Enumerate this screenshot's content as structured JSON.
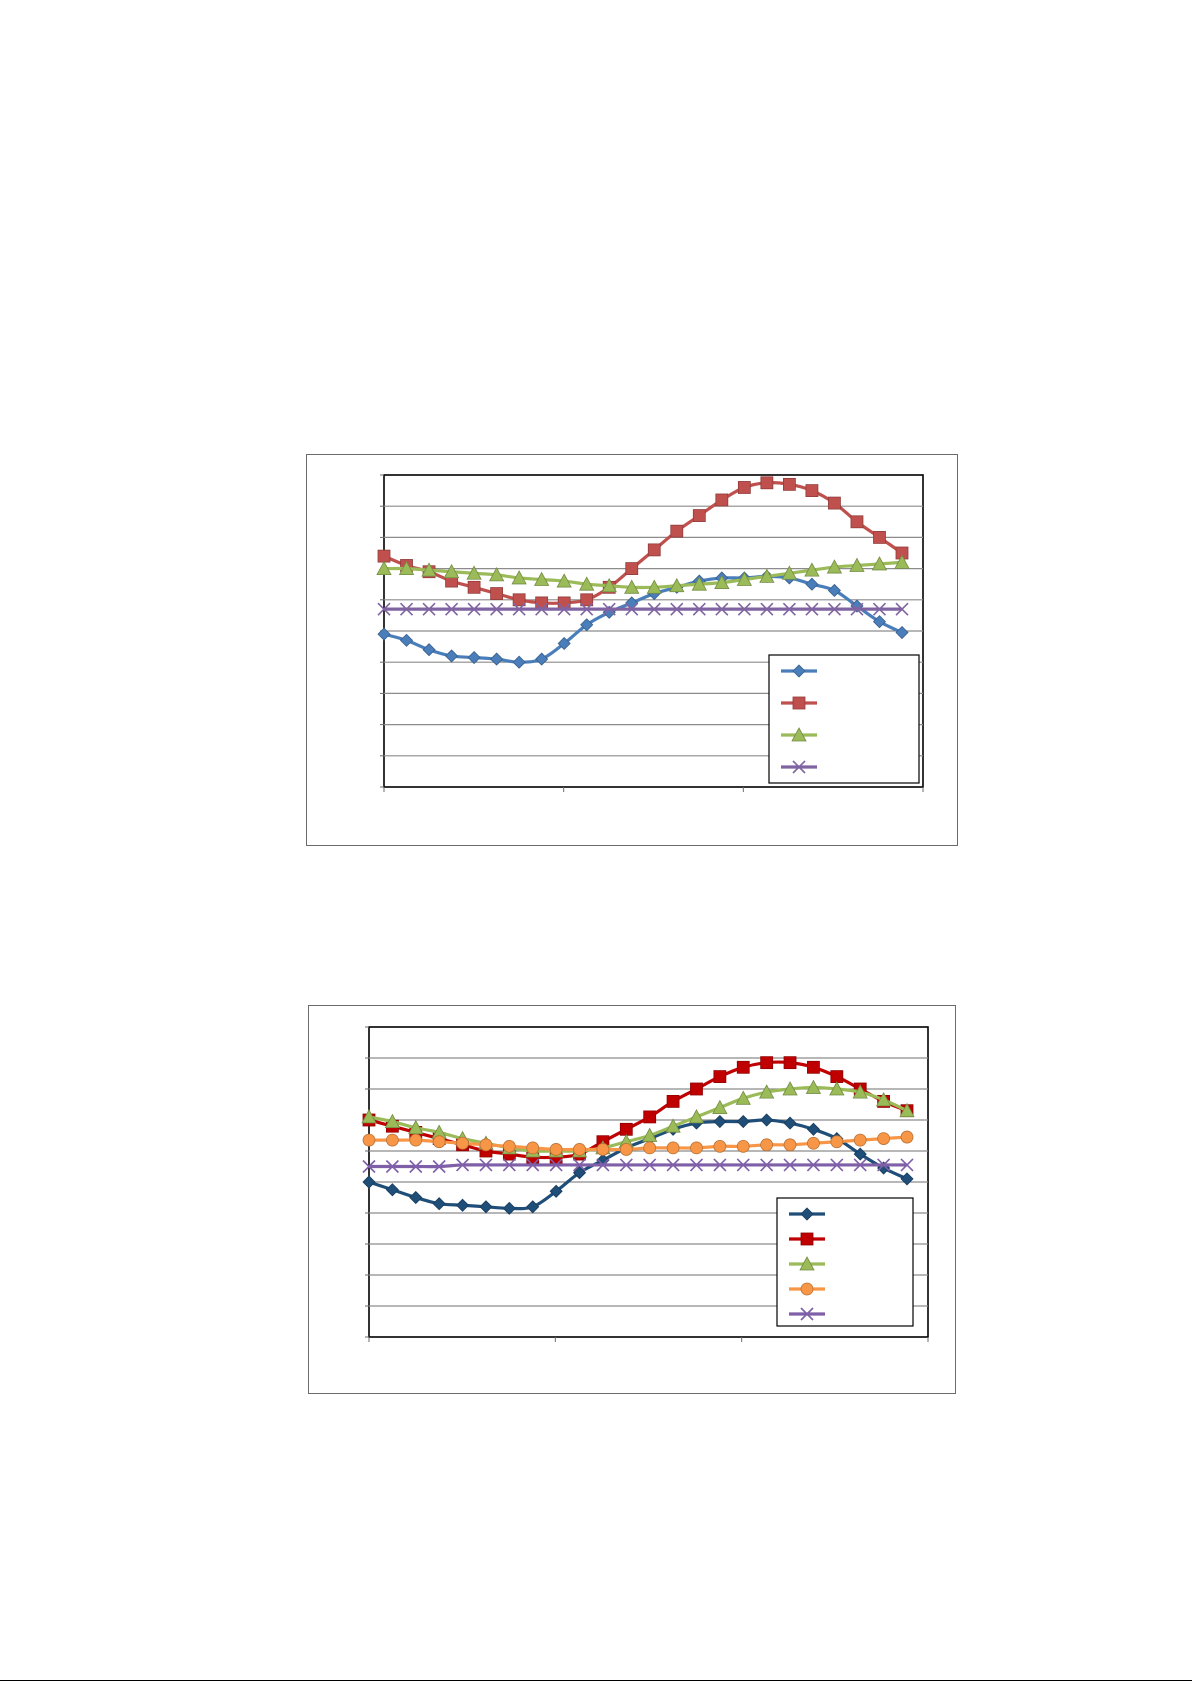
{
  "chart_data": [
    {
      "type": "line",
      "ylim": [
        0,
        10
      ],
      "y_gridlines": 10,
      "x_ticks": 3,
      "grid": true,
      "legend_position": "bottom-right",
      "series": [
        {
          "color": "#4a7ebb",
          "marker": "diamond",
          "values": [
            4.9,
            4.7,
            4.4,
            4.2,
            4.15,
            4.1,
            4.0,
            4.1,
            4.6,
            5.2,
            5.6,
            5.9,
            6.2,
            6.4,
            6.6,
            6.7,
            6.7,
            6.75,
            6.7,
            6.5,
            6.3,
            5.8,
            5.3,
            4.95
          ]
        },
        {
          "color": "#c0504d",
          "marker": "square",
          "values": [
            7.4,
            7.1,
            6.9,
            6.6,
            6.4,
            6.2,
            6.0,
            5.9,
            5.9,
            6.0,
            6.4,
            7.0,
            7.6,
            8.2,
            8.7,
            9.2,
            9.6,
            9.75,
            9.7,
            9.5,
            9.1,
            8.5,
            8.0,
            7.5
          ]
        },
        {
          "color": "#9bbb59",
          "marker": "triangle",
          "values": [
            7.0,
            7.0,
            6.95,
            6.9,
            6.85,
            6.8,
            6.7,
            6.65,
            6.6,
            6.5,
            6.45,
            6.4,
            6.4,
            6.45,
            6.5,
            6.55,
            6.65,
            6.75,
            6.85,
            6.95,
            7.05,
            7.1,
            7.15,
            7.2
          ]
        },
        {
          "color": "#8064a2",
          "marker": "x",
          "values": [
            5.7,
            5.7,
            5.7,
            5.7,
            5.7,
            5.7,
            5.7,
            5.7,
            5.7,
            5.7,
            5.7,
            5.7,
            5.7,
            5.7,
            5.7,
            5.7,
            5.7,
            5.7,
            5.7,
            5.7,
            5.7,
            5.7,
            5.7,
            5.7
          ]
        }
      ]
    },
    {
      "type": "line",
      "ylim": [
        0,
        10
      ],
      "y_gridlines": 10,
      "x_ticks": 3,
      "grid": true,
      "legend_position": "bottom-right",
      "series": [
        {
          "color": "#1f4e79",
          "marker": "diamond",
          "values": [
            5.0,
            4.75,
            4.5,
            4.3,
            4.25,
            4.2,
            4.15,
            4.2,
            4.7,
            5.3,
            5.7,
            6.1,
            6.4,
            6.7,
            6.9,
            6.95,
            6.95,
            7.0,
            6.9,
            6.7,
            6.4,
            5.9,
            5.45,
            5.1
          ]
        },
        {
          "color": "#c00000",
          "marker": "square",
          "values": [
            7.0,
            6.8,
            6.6,
            6.4,
            6.2,
            6.0,
            5.9,
            5.8,
            5.8,
            5.9,
            6.3,
            6.7,
            7.1,
            7.6,
            8.0,
            8.4,
            8.7,
            8.85,
            8.85,
            8.7,
            8.4,
            8.0,
            7.6,
            7.3
          ]
        },
        {
          "color": "#9bbb59",
          "marker": "triangle",
          "values": [
            7.1,
            6.95,
            6.75,
            6.6,
            6.4,
            6.25,
            6.1,
            6.0,
            6.0,
            6.0,
            6.1,
            6.3,
            6.5,
            6.8,
            7.1,
            7.4,
            7.7,
            7.9,
            8.0,
            8.05,
            8.0,
            7.9,
            7.65,
            7.3
          ]
        },
        {
          "color": "#f79646",
          "marker": "circle",
          "values": [
            6.35,
            6.35,
            6.35,
            6.3,
            6.25,
            6.2,
            6.15,
            6.1,
            6.05,
            6.05,
            6.05,
            6.05,
            6.1,
            6.1,
            6.1,
            6.15,
            6.15,
            6.2,
            6.2,
            6.25,
            6.3,
            6.35,
            6.4,
            6.45
          ]
        },
        {
          "color": "#7f5fa8",
          "marker": "x",
          "values": [
            5.5,
            5.5,
            5.5,
            5.5,
            5.55,
            5.55,
            5.55,
            5.55,
            5.55,
            5.55,
            5.55,
            5.55,
            5.55,
            5.55,
            5.55,
            5.55,
            5.55,
            5.55,
            5.55,
            5.55,
            5.55,
            5.55,
            5.55,
            5.55
          ]
        }
      ]
    }
  ]
}
